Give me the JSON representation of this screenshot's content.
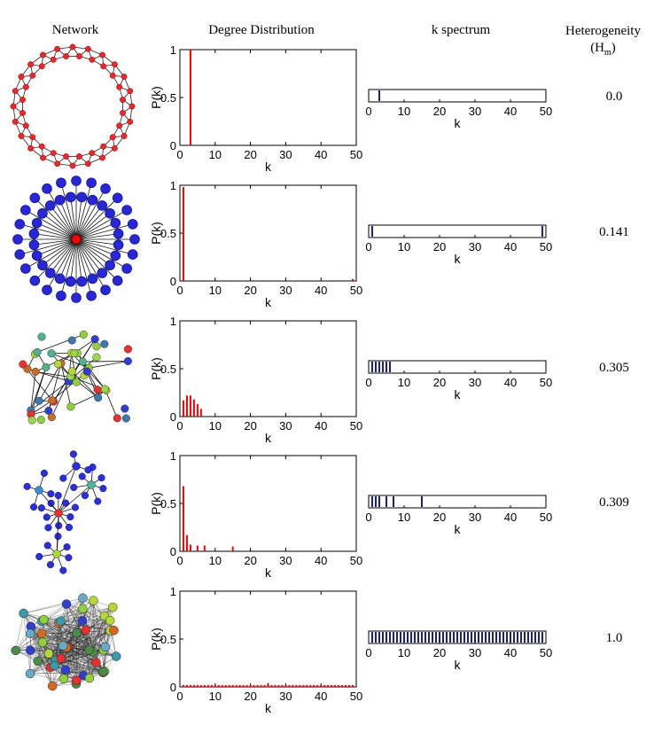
{
  "headers": {
    "network": "Network",
    "degree": "Degree Distribution",
    "spectrum": "k spectrum",
    "heterogeneity": "Heterogeneity",
    "heterogeneity_symbol": "(H",
    "heterogeneity_sub": "m",
    "heterogeneity_close": ")"
  },
  "colors": {
    "distribution_bar": "#ff0000",
    "spectrum_line": "#1a1aa6",
    "ring_node": "#e8282a",
    "star_leaf": "#2727d9",
    "star_hub": "#ff0000"
  },
  "network_icons": [
    "ring-network",
    "star-network",
    "random-network",
    "hierarchical-network",
    "complete-network"
  ],
  "chart_data": [
    {
      "type": "bar",
      "title": "",
      "xlabel": "k",
      "ylabel": "P(k)",
      "xlim": [
        0,
        50
      ],
      "ylim": [
        0,
        1
      ],
      "xticks": [
        0,
        10,
        20,
        30,
        40,
        50
      ],
      "yticks": [
        0,
        0.5,
        1
      ],
      "x": [
        3
      ],
      "values": [
        1.0
      ],
      "spectrum": {
        "xlabel": "k",
        "xlim": [
          0,
          50
        ],
        "xticks": [
          0,
          10,
          20,
          30,
          40,
          50
        ],
        "k": [
          3
        ]
      },
      "heterogeneity": "0.0"
    },
    {
      "type": "bar",
      "title": "",
      "xlabel": "k",
      "ylabel": "P(k)",
      "xlim": [
        0,
        50
      ],
      "ylim": [
        0,
        1
      ],
      "xticks": [
        0,
        10,
        20,
        30,
        40,
        50
      ],
      "yticks": [
        0,
        0.5,
        1
      ],
      "x": [
        1,
        49
      ],
      "values": [
        0.98,
        0.02
      ],
      "spectrum": {
        "xlabel": "k",
        "xlim": [
          0,
          50
        ],
        "xticks": [
          0,
          10,
          20,
          30,
          40,
          50
        ],
        "k": [
          1,
          49
        ]
      },
      "heterogeneity": "0.141"
    },
    {
      "type": "bar",
      "title": "",
      "xlabel": "k",
      "ylabel": "P(k)",
      "xlim": [
        0,
        50
      ],
      "ylim": [
        0,
        1
      ],
      "xticks": [
        0,
        10,
        20,
        30,
        40,
        50
      ],
      "yticks": [
        0,
        0.5,
        1
      ],
      "x": [
        1,
        2,
        3,
        4,
        5,
        6
      ],
      "values": [
        0.17,
        0.22,
        0.22,
        0.18,
        0.13,
        0.08
      ],
      "spectrum": {
        "xlabel": "k",
        "xlim": [
          0,
          50
        ],
        "xticks": [
          0,
          10,
          20,
          30,
          40,
          50
        ],
        "k": [
          1,
          2,
          3,
          4,
          5,
          6
        ]
      },
      "heterogeneity": "0.305"
    },
    {
      "type": "bar",
      "title": "",
      "xlabel": "k",
      "ylabel": "P(k)",
      "xlim": [
        0,
        50
      ],
      "ylim": [
        0,
        1
      ],
      "xticks": [
        0,
        10,
        20,
        30,
        40,
        50
      ],
      "yticks": [
        0,
        0.5,
        1
      ],
      "x": [
        1,
        2,
        3,
        5,
        7,
        15
      ],
      "values": [
        0.68,
        0.17,
        0.07,
        0.06,
        0.06,
        0.05
      ],
      "spectrum": {
        "xlabel": "k",
        "xlim": [
          0,
          50
        ],
        "xticks": [
          0,
          10,
          20,
          30,
          40,
          50
        ],
        "k": [
          1,
          2,
          3,
          5,
          7,
          15
        ]
      },
      "heterogeneity": "0.309"
    },
    {
      "type": "bar",
      "title": "",
      "xlabel": "k",
      "ylabel": "P(k)",
      "xlim": [
        0,
        50
      ],
      "ylim": [
        0,
        1
      ],
      "xticks": [
        0,
        10,
        20,
        30,
        40,
        50
      ],
      "yticks": [
        0,
        0.5,
        1
      ],
      "x": [
        1,
        2,
        3,
        4,
        5,
        6,
        7,
        8,
        9,
        10,
        11,
        12,
        13,
        14,
        15,
        16,
        17,
        18,
        19,
        20,
        21,
        22,
        23,
        24,
        25,
        26,
        27,
        28,
        29,
        30,
        31,
        32,
        33,
        34,
        35,
        36,
        37,
        38,
        39,
        40,
        41,
        42,
        43,
        44,
        45,
        46,
        47,
        48,
        49
      ],
      "values": [
        0.02,
        0.02,
        0.02,
        0.02,
        0.02,
        0.02,
        0.02,
        0.02,
        0.02,
        0.02,
        0.02,
        0.02,
        0.02,
        0.02,
        0.02,
        0.02,
        0.02,
        0.02,
        0.02,
        0.02,
        0.02,
        0.02,
        0.02,
        0.02,
        0.04,
        0.02,
        0.02,
        0.02,
        0.02,
        0.02,
        0.02,
        0.02,
        0.02,
        0.02,
        0.02,
        0.02,
        0.02,
        0.02,
        0.02,
        0.02,
        0.02,
        0.02,
        0.02,
        0.02,
        0.02,
        0.02,
        0.02,
        0.02,
        0.02
      ],
      "spectrum": {
        "xlabel": "k",
        "xlim": [
          0,
          50
        ],
        "xticks": [
          0,
          10,
          20,
          30,
          40,
          50
        ],
        "k": [
          1,
          2,
          3,
          4,
          5,
          6,
          7,
          8,
          9,
          10,
          11,
          12,
          13,
          14,
          15,
          16,
          17,
          18,
          19,
          20,
          21,
          22,
          23,
          24,
          25,
          26,
          27,
          28,
          29,
          30,
          31,
          32,
          33,
          34,
          35,
          36,
          37,
          38,
          39,
          40,
          41,
          42,
          43,
          44,
          45,
          46,
          47,
          48,
          49
        ]
      },
      "heterogeneity": "1.0"
    }
  ]
}
